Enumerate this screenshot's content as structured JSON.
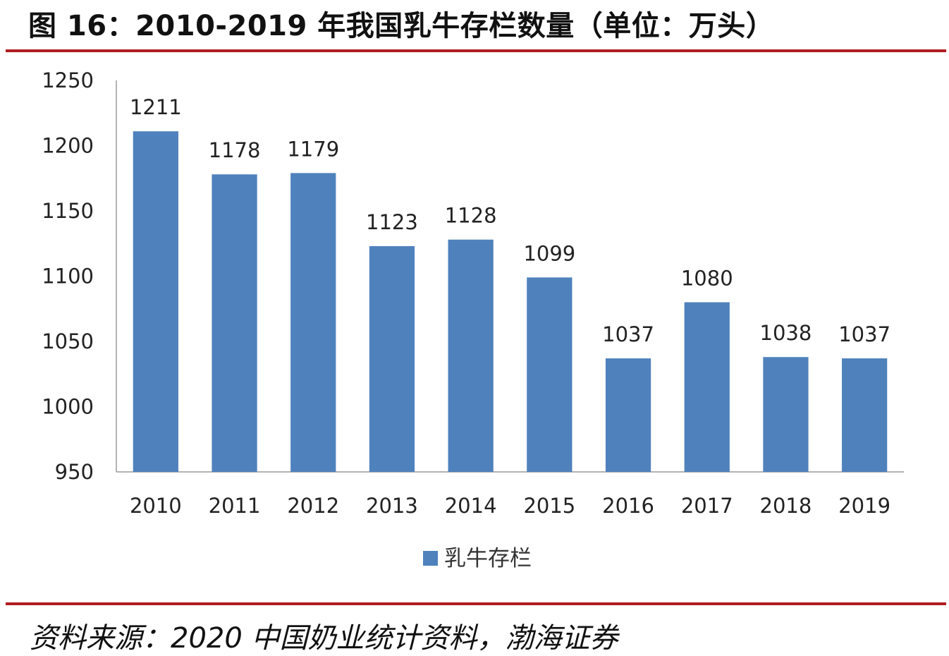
{
  "title": "图 16：2010-2019 年我国乳牛存栏数量（单位：万头）",
  "source": "资料来源：2020 中国奶业统计资料，渤海证券",
  "colors": {
    "bar": "#4f81bd",
    "rule": "#b01e23",
    "axis": "#9a9a9a"
  },
  "chart_data": {
    "type": "bar",
    "title": "图 16：2010-2019 年我国乳牛存栏数量（单位：万头）",
    "categories": [
      "2010",
      "2011",
      "2012",
      "2013",
      "2014",
      "2015",
      "2016",
      "2017",
      "2018",
      "2019"
    ],
    "series": [
      {
        "name": "乳牛存栏",
        "values": [
          1211,
          1178,
          1179,
          1123,
          1128,
          1099,
          1037,
          1080,
          1038,
          1037
        ]
      }
    ],
    "ylim": [
      950,
      1250
    ],
    "yticks": [
      950,
      1000,
      1050,
      1100,
      1150,
      1200,
      1250
    ],
    "grid": false,
    "legend": "bottom-center",
    "data_labels": true
  }
}
